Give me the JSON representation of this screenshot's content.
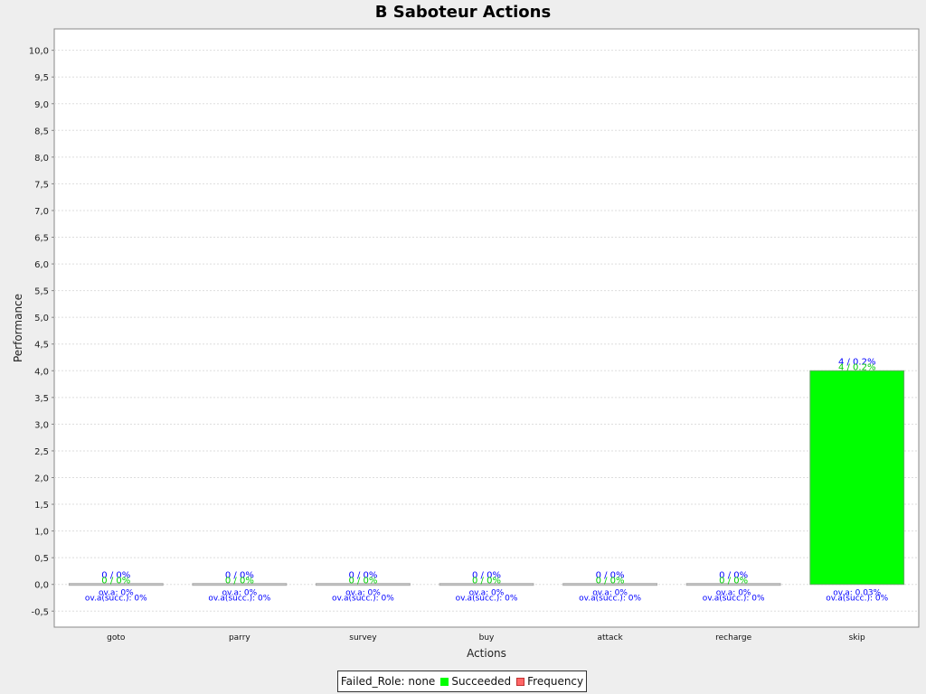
{
  "colors": {
    "succeeded": "#00ff00",
    "frequency": "#ff6666",
    "label_blue": "#0000ff",
    "label_green": "#00d000",
    "plot_bg": "#ffffff",
    "page_bg": "#eeeeee",
    "grid": "#dddddd"
  },
  "legend": {
    "items": [
      {
        "label": "Failed_Role: none",
        "color": ""
      },
      {
        "label": "Succeeded",
        "color": "#00ff00"
      },
      {
        "label": "Frequency",
        "color": "#ff6666"
      }
    ]
  },
  "chart_data": {
    "type": "bar",
    "title": "B Saboteur Actions",
    "xlabel": "Actions",
    "ylabel": "Performance",
    "ylim": [
      -0.8,
      10.4
    ],
    "yticks": [
      "-0,5",
      "0,0",
      "0,5",
      "1,0",
      "1,5",
      "2,0",
      "2,5",
      "3,0",
      "3,5",
      "4,0",
      "4,5",
      "5,0",
      "5,5",
      "6,0",
      "6,5",
      "7,0",
      "7,5",
      "8,0",
      "8,5",
      "9,0",
      "9,5",
      "10,0"
    ],
    "grid": true,
    "legend_position": "bottom",
    "categories": [
      "goto",
      "parry",
      "survey",
      "buy",
      "attack",
      "recharge",
      "skip"
    ],
    "series": [
      {
        "name": "Succeeded",
        "values": [
          0,
          0,
          0,
          0,
          0,
          0,
          4
        ]
      },
      {
        "name": "Frequency",
        "values": [
          0,
          0,
          0,
          0,
          0,
          0,
          4
        ]
      }
    ],
    "labels_frequency": [
      "0 / 0%",
      "0 / 0%",
      "0 / 0%",
      "0 / 0%",
      "0 / 0%",
      "0 / 0%",
      "4 / 0.2%"
    ],
    "labels_succeeded": [
      "0 / 0%",
      "0 / 0%",
      "0 / 0%",
      "0 / 0%",
      "0 / 0%",
      "0 / 0%",
      "4 / 0.2%"
    ],
    "labels_overall": [
      "ov.a: 0%",
      "ov.a: 0%",
      "ov.a: 0%",
      "ov.a: 0%",
      "ov.a: 0%",
      "ov.a: 0%",
      "ov.a: 0.03%"
    ],
    "labels_overall_succ": [
      "ov.a(succ.): 0%",
      "ov.a(succ.): 0%",
      "ov.a(succ.): 0%",
      "ov.a(succ.): 0%",
      "ov.a(succ.): 0%",
      "ov.a(succ.): 0%",
      "ov.a(succ.): 0%"
    ]
  }
}
